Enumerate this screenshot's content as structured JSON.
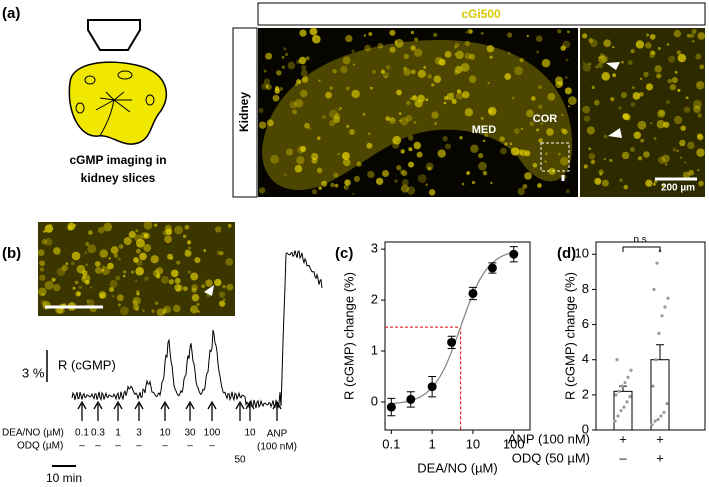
{
  "panels": {
    "a": {
      "label": "(a)",
      "caption": [
        "cGMP imaging in",
        "kidney slices"
      ],
      "sensor": "cGi500",
      "tissue": "Kidney",
      "regions": [
        "MED",
        "COR"
      ],
      "scale_bar": "200 µm"
    },
    "b": {
      "label": "(b)",
      "trace_label": "R (cGMP)",
      "scale": "3 %",
      "rows": [
        "DEA/NO (µM)",
        "ODQ (µM)"
      ],
      "applications": [
        {
          "dea": "0.1",
          "odq": "–"
        },
        {
          "dea": "0.3",
          "odq": "–"
        },
        {
          "dea": "1",
          "odq": "–"
        },
        {
          "dea": "3",
          "odq": "–"
        },
        {
          "dea": "10",
          "odq": "–"
        },
        {
          "dea": "30",
          "odq": "–"
        },
        {
          "dea": "100",
          "odq": "–"
        },
        {
          "odq": "50"
        },
        {
          "dea": "10"
        },
        {
          "anp": [
            "ANP",
            "(100 nM)"
          ]
        }
      ],
      "time_scale": "10 min"
    },
    "c": {
      "label": "(c)"
    },
    "d": {
      "label": "(d)"
    }
  },
  "chart_data": [
    {
      "type": "scatter",
      "x": [
        0.1,
        0.3,
        1,
        3,
        10,
        30,
        100
      ],
      "values": [
        -0.1,
        0.05,
        0.3,
        1.17,
        2.13,
        2.63,
        2.9
      ],
      "errors": [
        0.17,
        0.15,
        0.2,
        0.12,
        0.12,
        0.1,
        0.15
      ],
      "xlabel": "DEA/NO (µM)",
      "ylabel": "R (cGMP) change (%)",
      "xscale": "log",
      "xlim": [
        0.07,
        250
      ],
      "ylim": [
        -0.55,
        3.14
      ],
      "xticks": [
        0.1,
        1,
        10,
        100
      ],
      "yticks": [
        0,
        1,
        2,
        3
      ],
      "color": "#000000",
      "fit": {
        "bottom": -0.05,
        "top": 3.0,
        "ec50": 5,
        "hill": 1.3,
        "color": "#8a8a8a"
      },
      "ec50_marker": {
        "x": 5,
        "y": 1.47,
        "color": "#e00000"
      }
    },
    {
      "type": "bar",
      "values": [
        2.2,
        4.0
      ],
      "errors": [
        0.3,
        0.85
      ],
      "points": [
        [
          0.5,
          0.8,
          1.1,
          1.3,
          1.6,
          1.9,
          2.0,
          2.2,
          2.5,
          2.7,
          3.0,
          3.4,
          4.0
        ],
        [
          0.3,
          0.5,
          0.6,
          0.8,
          1.0,
          1.5,
          2.5,
          4.0,
          5.5,
          6.5,
          7.0,
          7.5,
          8.0,
          9.5,
          10.2
        ]
      ],
      "ylabel": "R (cGMP) change (%)",
      "ylim": [
        0,
        10.7
      ],
      "yticks": [
        0,
        2,
        4,
        6,
        8,
        10
      ],
      "bar_color": "#ffffff",
      "point_color": "#9a9a9a",
      "annotation": "n.s.",
      "conditions": [
        {
          "label": "ANP (100 nM)",
          "marks": [
            "+",
            "+"
          ]
        },
        {
          "label": "ODQ (50 µM)",
          "marks": [
            "–",
            "+"
          ]
        }
      ]
    }
  ]
}
